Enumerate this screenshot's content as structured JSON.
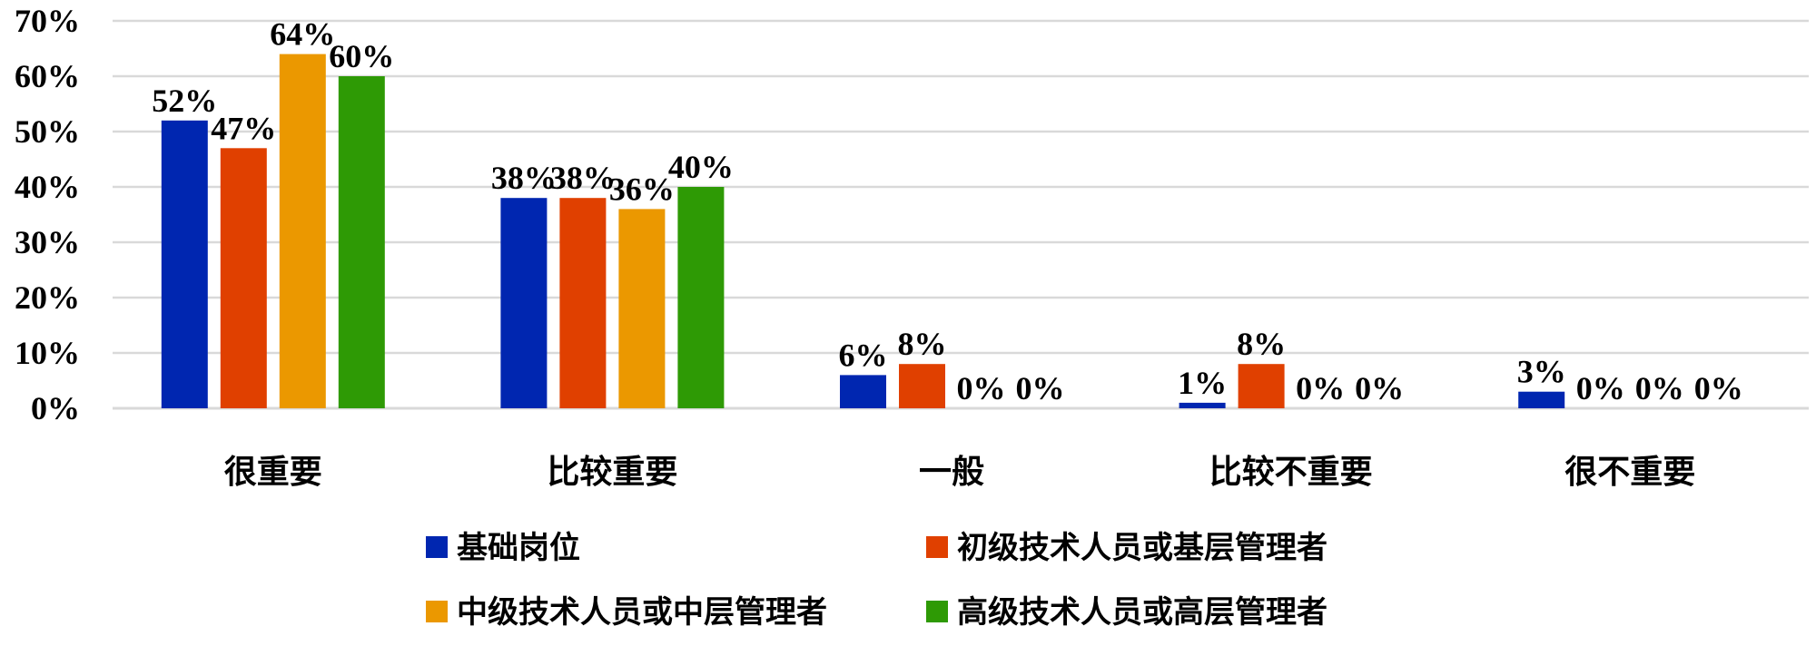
{
  "chart_data": {
    "type": "bar",
    "categories": [
      "很重要",
      "比较重要",
      "一般",
      "比较不重要",
      "很不重要"
    ],
    "series": [
      {
        "name": "基础岗位",
        "color": "#0026b0",
        "values": [
          52,
          38,
          6,
          1,
          3
        ],
        "labels": [
          "52%",
          "38%",
          "6%",
          "1%",
          "3%"
        ]
      },
      {
        "name": "初级技术人员或基层管理者",
        "color": "#e04000",
        "values": [
          47,
          38,
          8,
          8,
          0
        ],
        "labels": [
          "47%",
          "38%",
          "8%",
          "8%",
          "0%"
        ]
      },
      {
        "name": "中级技术人员或中层管理者",
        "color": "#eb9800",
        "values": [
          64,
          36,
          0,
          0,
          0
        ],
        "labels": [
          "64%",
          "36%",
          "0%",
          "0%",
          "0%"
        ]
      },
      {
        "name": "高级技术人员或高层管理者",
        "color": "#2e9a05",
        "values": [
          60,
          40,
          0,
          0,
          0
        ],
        "labels": [
          "60%",
          "40%",
          "0%",
          "0%",
          "0%"
        ]
      }
    ],
    "yticks": [
      "0%",
      "10%",
      "20%",
      "30%",
      "40%",
      "50%",
      "60%",
      "70%"
    ],
    "ylim": [
      0,
      70
    ],
    "grid": true,
    "legend_position": "bottom",
    "gridline_color": "#d9d9d9"
  }
}
